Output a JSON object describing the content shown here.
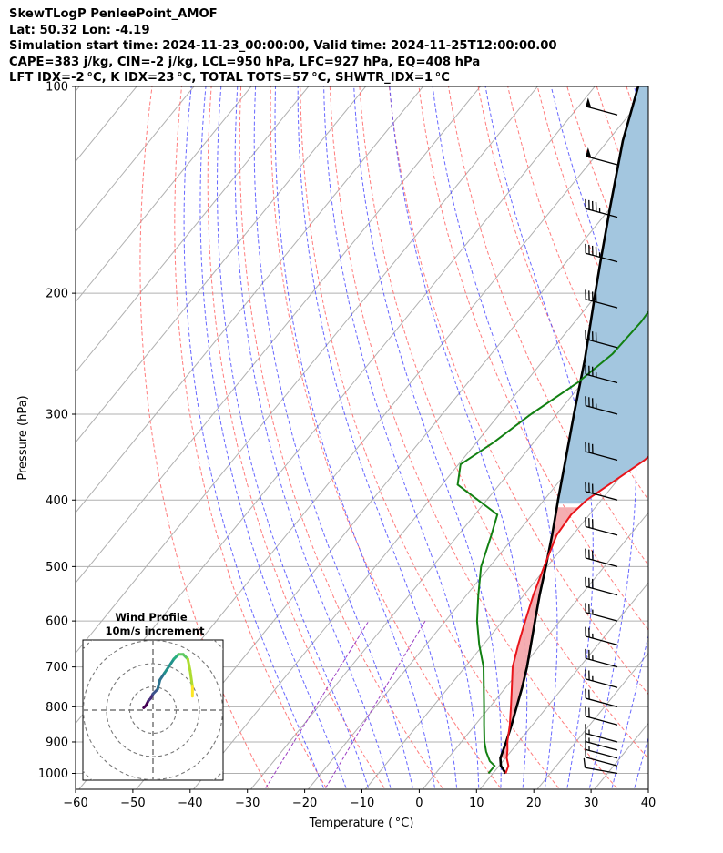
{
  "header": {
    "line1": "SkewTLogP PenleePoint_AMOF",
    "line2": "Lat: 50.32   Lon: -4.19",
    "line3": "Simulation start time: 2024-11-23_00:00:00, Valid time: 2024-11-25T12:00:00.00",
    "line4": "CAPE=383 j/kg, CIN=-2 j/kg, LCL=950 hPa, LFC=927 hPa, EQ=408 hPa",
    "line5": "LFT IDX=-2 °C, K IDX=23 °C, TOTAL TOTS=57 °C, SHWTR_IDX=1 °C"
  },
  "chart_data": {
    "type": "line",
    "xlabel": "Temperature ( °C)",
    "ylabel": "Pressure (hPa)",
    "xlim": [
      -60,
      40
    ],
    "ylim": [
      1040,
      100
    ],
    "yscale": "log",
    "x_ticks": [
      -60,
      -50,
      -40,
      -30,
      -20,
      -10,
      0,
      10,
      20,
      30,
      40
    ],
    "y_ticks": [
      100,
      200,
      300,
      400,
      500,
      600,
      700,
      800,
      900,
      1000
    ],
    "grid": true,
    "temperature": [
      [
        1000,
        12.8
      ],
      [
        975,
        12.2
      ],
      [
        950,
        10.8
      ],
      [
        925,
        9.8
      ],
      [
        900,
        8.6
      ],
      [
        850,
        6.6
      ],
      [
        800,
        4.2
      ],
      [
        750,
        1.6
      ],
      [
        700,
        -1.2
      ],
      [
        650,
        -3.4
      ],
      [
        600,
        -5.6
      ],
      [
        550,
        -7.9
      ],
      [
        500,
        -10.1
      ],
      [
        450,
        -12.4
      ],
      [
        420,
        -12.8
      ],
      [
        400,
        -12.2
      ],
      [
        350,
        -7.8
      ],
      [
        300,
        -5.2
      ],
      [
        270,
        -3.7
      ],
      [
        250,
        -1.8
      ],
      [
        230,
        1.6
      ],
      [
        210,
        4.0
      ],
      [
        200,
        4.8
      ],
      [
        180,
        4.6
      ],
      [
        160,
        4.6
      ],
      [
        150,
        4.9
      ],
      [
        140,
        5.0
      ],
      [
        130,
        5.4
      ],
      [
        120,
        6.5
      ],
      [
        110,
        8.2
      ],
      [
        100,
        10.0
      ]
    ],
    "dewpoint": [
      [
        1000,
        9.8
      ],
      [
        975,
        9.8
      ],
      [
        960,
        8.3
      ],
      [
        930,
        6.3
      ],
      [
        900,
        4.6
      ],
      [
        850,
        2.1
      ],
      [
        800,
        -0.5
      ],
      [
        750,
        -3.3
      ],
      [
        700,
        -6.3
      ],
      [
        650,
        -10.2
      ],
      [
        600,
        -14.0
      ],
      [
        550,
        -17.5
      ],
      [
        500,
        -21.1
      ],
      [
        450,
        -23.8
      ],
      [
        420,
        -25.7
      ],
      [
        380,
        -36.9
      ],
      [
        355,
        -39.3
      ],
      [
        330,
        -36.7
      ],
      [
        300,
        -34.2
      ],
      [
        270,
        -30.6
      ],
      [
        245,
        -28.6
      ],
      [
        220,
        -28.2
      ],
      [
        200,
        -28.7
      ],
      [
        180,
        -28.3
      ],
      [
        160,
        -28.0
      ],
      [
        140,
        -24.8
      ],
      [
        120,
        -21.6
      ],
      [
        100,
        -16.5
      ]
    ],
    "parcel": [
      [
        1000,
        12.8
      ],
      [
        975,
        10.9
      ],
      [
        950,
        9.7
      ],
      [
        900,
        8.4
      ],
      [
        850,
        6.9
      ],
      [
        800,
        5.2
      ],
      [
        750,
        3.4
      ],
      [
        700,
        1.3
      ],
      [
        650,
        -1.2
      ],
      [
        600,
        -3.9
      ],
      [
        550,
        -6.8
      ],
      [
        500,
        -9.8
      ],
      [
        450,
        -13.2
      ],
      [
        408,
        -16.5
      ],
      [
        400,
        -17.2
      ],
      [
        350,
        -21.6
      ],
      [
        300,
        -26.7
      ],
      [
        250,
        -32.6
      ],
      [
        200,
        -40.3
      ],
      [
        180,
        -43.9
      ],
      [
        150,
        -50.0
      ],
      [
        120,
        -57.3
      ],
      [
        100,
        -62.4
      ]
    ],
    "cape_fill_color": "#f4a9ad",
    "cape_region_color": "#a3c6df",
    "temperature_color": "#e8141a",
    "dewpoint_color": "#128012",
    "parcel_color": "#000000",
    "dry_adiabat_color": "#ff6e6e",
    "moist_adiabat_color": "#4c4cff",
    "mixing_ratio_color": "#9c3fc4",
    "wind_barbs": [
      [
        1000,
        10,
        280
      ],
      [
        975,
        12,
        285
      ],
      [
        950,
        14,
        285
      ],
      [
        925,
        16,
        285
      ],
      [
        900,
        17,
        285
      ],
      [
        850,
        18,
        285
      ],
      [
        800,
        20,
        285
      ],
      [
        750,
        23,
        285
      ],
      [
        700,
        23,
        285
      ],
      [
        650,
        24,
        285
      ],
      [
        600,
        26,
        285
      ],
      [
        550,
        28,
        285
      ],
      [
        500,
        30,
        285
      ],
      [
        450,
        30,
        285
      ],
      [
        400,
        30,
        285
      ],
      [
        350,
        32,
        285
      ],
      [
        300,
        35,
        285
      ],
      [
        270,
        36,
        285
      ],
      [
        240,
        40,
        285
      ],
      [
        210,
        42,
        285
      ],
      [
        180,
        45,
        285
      ],
      [
        155,
        45,
        285
      ],
      [
        130,
        48,
        285
      ],
      [
        110,
        50,
        285
      ]
    ],
    "hodograph": {
      "title": "Wind Profile",
      "subtitle": "10m/s increment",
      "ring_step": 10,
      "points": [
        [
          -4,
          1
        ],
        [
          -3,
          2
        ],
        [
          -2,
          4
        ],
        [
          -1,
          5
        ],
        [
          0,
          7
        ],
        [
          2,
          9
        ],
        [
          3,
          13
        ],
        [
          5,
          16
        ],
        [
          7,
          19
        ],
        [
          9,
          22
        ],
        [
          11,
          24
        ],
        [
          13,
          24
        ],
        [
          15,
          22
        ],
        [
          16,
          17
        ],
        [
          17,
          10
        ],
        [
          17,
          6
        ]
      ]
    }
  }
}
